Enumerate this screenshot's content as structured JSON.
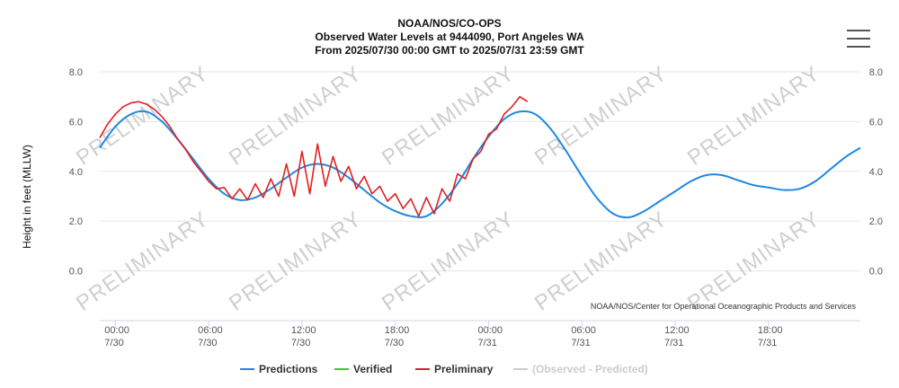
{
  "chart_data": {
    "type": "line",
    "title": [
      "NOAA/NOS/CO-OPS",
      "Observed Water Levels at 9444090, Port Angeles WA",
      "From 2025/07/30 00:00 GMT to 2025/07/31 23:59 GMT"
    ],
    "ylabel": "Height in feet (MLLW)",
    "ylim": [
      -2,
      8
    ],
    "y_ticks": [
      "8.0",
      "6.0",
      "4.0",
      "2.0",
      "0.0"
    ],
    "xlim_hours": [
      -1,
      47.9
    ],
    "x_ticks": [
      {
        "hour": 0,
        "time": "00:00",
        "date": "7/30"
      },
      {
        "hour": 6,
        "time": "06:00",
        "date": "7/30"
      },
      {
        "hour": 12,
        "time": "12:00",
        "date": "7/30"
      },
      {
        "hour": 18,
        "time": "18:00",
        "date": "7/30"
      },
      {
        "hour": 24,
        "time": "00:00",
        "date": "7/31"
      },
      {
        "hour": 30,
        "time": "06:00",
        "date": "7/31"
      },
      {
        "hour": 36,
        "time": "12:00",
        "date": "7/31"
      },
      {
        "hour": 42,
        "time": "18:00",
        "date": "7/31"
      }
    ],
    "watermark": "PRELIMINARY",
    "credit": "NOAA/NOS/Center for Operational Oceanographic Products and Services",
    "series": [
      {
        "name": "Predictions",
        "color": "#1f88e0",
        "x": [
          -1,
          0,
          1,
          2,
          3,
          4,
          5,
          6,
          7,
          8,
          9,
          10,
          11,
          12,
          13,
          14,
          15,
          16,
          17,
          18,
          19,
          20,
          21,
          22,
          23,
          24,
          25,
          26,
          27,
          28,
          29,
          30,
          31,
          32,
          33,
          34,
          35,
          36,
          37,
          38,
          39,
          40,
          41,
          42,
          43,
          44,
          45,
          46,
          47,
          47.9
        ],
        "y": [
          4.95,
          5.8,
          6.3,
          6.4,
          6.0,
          5.3,
          4.5,
          3.7,
          3.1,
          2.85,
          2.95,
          3.3,
          3.75,
          4.15,
          4.3,
          4.15,
          3.75,
          3.25,
          2.75,
          2.4,
          2.2,
          2.2,
          2.7,
          3.5,
          4.5,
          5.4,
          6.1,
          6.4,
          6.3,
          5.7,
          4.8,
          3.8,
          2.9,
          2.3,
          2.15,
          2.4,
          2.8,
          3.2,
          3.6,
          3.85,
          3.85,
          3.65,
          3.45,
          3.35,
          3.25,
          3.3,
          3.6,
          4.1,
          4.6,
          4.95
        ]
      },
      {
        "name": "Verified",
        "color": "#33cc33",
        "x": [],
        "y": []
      },
      {
        "name": "Preliminary",
        "color": "#e02020",
        "x": [
          -1,
          -0.5,
          0,
          0.5,
          1,
          1.5,
          2,
          2.5,
          3,
          3.5,
          4,
          4.5,
          5,
          5.5,
          6,
          6.5,
          7,
          7.5,
          8,
          8.5,
          9,
          9.5,
          10,
          10.5,
          11,
          11.5,
          12,
          12.5,
          13,
          13.5,
          14,
          14.5,
          15,
          15.5,
          16,
          16.5,
          17,
          17.5,
          18,
          18.5,
          19,
          19.5,
          20,
          20.5,
          21,
          21.5,
          22,
          22.5,
          23,
          23.5,
          24,
          24.5,
          25,
          25.5,
          26,
          26.5
        ],
        "y": [
          5.35,
          5.9,
          6.3,
          6.6,
          6.75,
          6.8,
          6.7,
          6.5,
          6.2,
          5.8,
          5.3,
          4.9,
          4.4,
          4.0,
          3.6,
          3.3,
          3.35,
          2.9,
          3.3,
          2.85,
          3.5,
          2.95,
          3.7,
          3.0,
          4.3,
          3.0,
          4.8,
          3.1,
          5.1,
          3.4,
          4.6,
          3.6,
          4.2,
          3.3,
          3.8,
          3.1,
          3.4,
          2.8,
          3.1,
          2.5,
          2.9,
          2.2,
          2.95,
          2.3,
          3.3,
          2.8,
          3.9,
          3.7,
          4.5,
          4.8,
          5.5,
          5.7,
          6.3,
          6.6,
          7.0,
          6.8
        ]
      },
      {
        "name": "(Observed - Predicted)",
        "color": "#cccccc",
        "disabled": true,
        "x": [],
        "y": []
      }
    ],
    "legend_position": "bottom-center",
    "grid": true
  },
  "menu": {
    "icon": "hamburger-menu-icon"
  }
}
